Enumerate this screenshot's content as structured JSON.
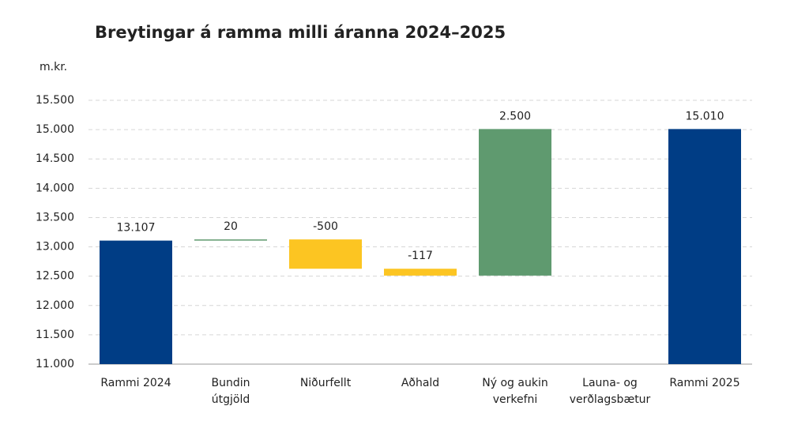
{
  "chart_data": {
    "type": "waterfall",
    "title": "Breytingar á ramma milli áranna 2024–2025",
    "y_label": "m.kr.",
    "categories": [
      [
        "Rammi 2024"
      ],
      [
        "Bundin",
        "útgjöld"
      ],
      [
        "Niðurfellt"
      ],
      [
        "Aðhald"
      ],
      [
        "Ný og aukin",
        "verkefni"
      ],
      [
        "Launa- og",
        "verðlagsbætur"
      ],
      [
        "Rammi 2025"
      ]
    ],
    "measure": [
      "total",
      "relative",
      "relative",
      "relative",
      "relative",
      "relative",
      "total"
    ],
    "values": [
      13107,
      20,
      -500,
      -117,
      2500,
      null,
      15010
    ],
    "value_labels": [
      "13.107",
      "20",
      "-500",
      "-117",
      "2.500",
      null,
      "15.010"
    ],
    "colors": {
      "total": "#003d85",
      "increase": "#5f9a6f",
      "decrease": "#fcc522"
    },
    "ylim": [
      11000,
      15500
    ],
    "yticks": [
      {
        "value": 11000,
        "label": "11.000"
      },
      {
        "value": 11500,
        "label": "11.500"
      },
      {
        "value": 12000,
        "label": "12.000"
      },
      {
        "value": 12500,
        "label": "12.500"
      },
      {
        "value": 13000,
        "label": "13.000"
      },
      {
        "value": 13500,
        "label": "13.500"
      },
      {
        "value": 14000,
        "label": "14.000"
      },
      {
        "value": 14500,
        "label": "14.500"
      },
      {
        "value": 15000,
        "label": "15.000"
      },
      {
        "value": 15500,
        "label": "15.500"
      }
    ],
    "grid": true
  }
}
